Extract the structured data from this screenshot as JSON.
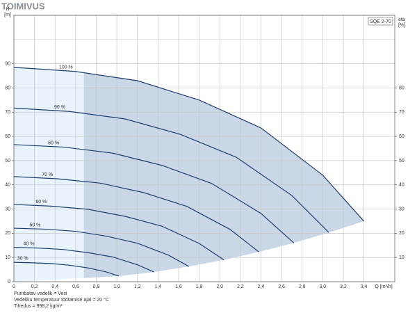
{
  "title": "TOIMIVUS",
  "chart_data": {
    "type": "line",
    "model": "SQE 2-70",
    "y_label": "H",
    "y_unit": "[m]",
    "y2_label": "eta",
    "y2_unit": "[%]",
    "x_label": "Q [m³/h]",
    "xlim": [
      0,
      3.7
    ],
    "ylim": [
      0,
      110
    ],
    "y2lim": [
      0,
      110
    ],
    "xticks": [
      0,
      {
        "value": 0.2,
        "label": "0,2"
      },
      {
        "value": 0.4,
        "label": "0,4"
      },
      {
        "value": 0.6,
        "label": "0,6"
      },
      {
        "value": 0.8,
        "label": "0,8"
      },
      {
        "value": 1,
        "label": "1,0"
      },
      {
        "value": 1.2,
        "label": "1,2"
      },
      {
        "value": 1.4,
        "label": "1,4"
      },
      {
        "value": 1.6,
        "label": "1,6"
      },
      {
        "value": 1.8,
        "label": "1,8"
      },
      {
        "value": 2,
        "label": "2,0"
      },
      {
        "value": 2.2,
        "label": "2,2"
      },
      {
        "value": 2.4,
        "label": "2,4"
      },
      {
        "value": 2.6,
        "label": "2,6"
      },
      {
        "value": 2.8,
        "label": "2,8"
      },
      {
        "value": 3,
        "label": "3,0"
      },
      {
        "value": 3.2,
        "label": "3,2"
      },
      {
        "value": 3.4,
        "label": "3,4"
      }
    ],
    "yticks": [
      0,
      10,
      20,
      30,
      40,
      50,
      60,
      70,
      80,
      90
    ],
    "y2ticks": [
      10,
      20,
      30,
      40,
      50,
      60,
      70,
      80
    ],
    "grid": true,
    "shade_start_q": 0.68,
    "series": [
      {
        "name": "100 %",
        "color": "#1f3d6e",
        "x": [
          0,
          0.6,
          1.2,
          1.8,
          2.4,
          3.0,
          3.4
        ],
        "values": [
          88.5,
          86.8,
          83,
          75,
          63.5,
          44,
          25
        ]
      },
      {
        "name": "90 %",
        "color": "#1f3d6e",
        "x": [
          0,
          0.54,
          1.08,
          1.62,
          2.16,
          2.7,
          3.06
        ],
        "values": [
          71.7,
          70.3,
          67.2,
          60.8,
          51.4,
          35.6,
          20.3
        ]
      },
      {
        "name": "80 %",
        "color": "#1f3d6e",
        "x": [
          0,
          0.48,
          0.96,
          1.44,
          1.92,
          2.4,
          2.72
        ],
        "values": [
          56.6,
          55.6,
          53.1,
          48,
          40.6,
          28.2,
          16
        ]
      },
      {
        "name": "70 %",
        "color": "#1f3d6e",
        "x": [
          0,
          0.42,
          0.84,
          1.26,
          1.68,
          2.1,
          2.38
        ],
        "values": [
          43.4,
          42.5,
          40.7,
          36.8,
          31.1,
          21.6,
          12.3
        ]
      },
      {
        "name": "60 %",
        "color": "#1f3d6e",
        "x": [
          0,
          0.36,
          0.72,
          1.08,
          1.44,
          1.8,
          2.04
        ],
        "values": [
          31.9,
          31.2,
          29.9,
          27,
          22.9,
          15.8,
          9
        ]
      },
      {
        "name": "50 %",
        "color": "#1f3d6e",
        "x": [
          0,
          0.3,
          0.6,
          0.9,
          1.2,
          1.5,
          1.7
        ],
        "values": [
          22.1,
          21.7,
          20.8,
          18.8,
          15.9,
          11,
          6.3
        ]
      },
      {
        "name": "40 %",
        "color": "#1f3d6e",
        "x": [
          0,
          0.24,
          0.48,
          0.72,
          0.96,
          1.2,
          1.36
        ],
        "values": [
          14.2,
          13.9,
          13.3,
          12,
          10.2,
          7,
          4
        ]
      },
      {
        "name": "30 %",
        "color": "#1f3d6e",
        "x": [
          0,
          0.18,
          0.36,
          0.54,
          0.72,
          0.9,
          1.02
        ],
        "values": [
          8,
          7.8,
          7.5,
          6.8,
          5.7,
          4,
          2.3
        ]
      }
    ]
  },
  "notes": [
    "Pumbatav vedelik = Vesi",
    "Vedeliku temperatuur töötamise ajal = 20 °C",
    "Tihedus = 998,2 kg/m³"
  ]
}
